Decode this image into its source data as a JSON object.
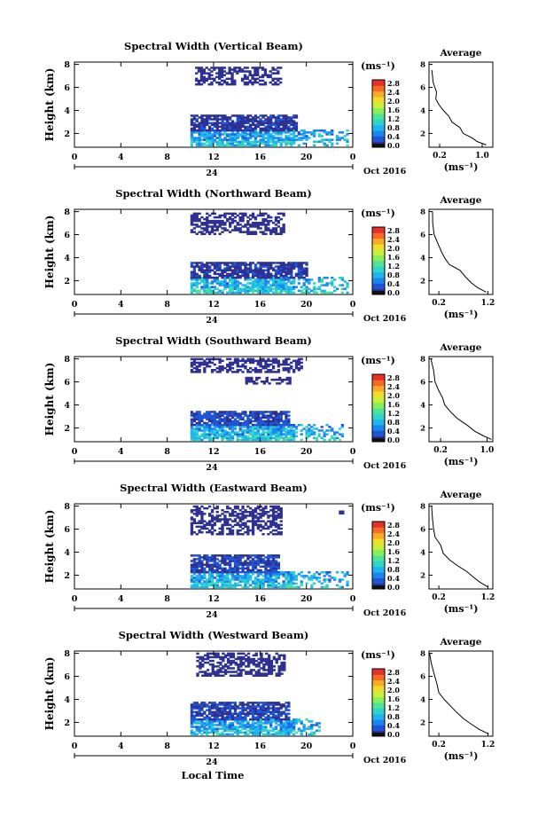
{
  "figure": {
    "xlabel": "Local Time",
    "date_label": "Oct 2016",
    "day_label": "24",
    "colorbar_unit": "(ms⁻¹)",
    "colorbar_ticks": [
      "0.0",
      "0.4",
      "0.8",
      "1.2",
      "1.6",
      "2.0",
      "2.4",
      "2.8"
    ],
    "colormap": [
      "#2e3192",
      "#1f56d6",
      "#1b86f0",
      "#1fb6f0",
      "#2fd6c8",
      "#4fe39a",
      "#8aed5c",
      "#c8f03a",
      "#f0dc2a",
      "#f8aa28",
      "#f56a25",
      "#e8302a"
    ],
    "avg_title": "Average",
    "avg_xlabel": "(ms⁻¹)"
  },
  "chart_data": [
    {
      "type": "heatmap",
      "title": "Spectral Width (Vertical Beam)",
      "ylabel": "Height (km)",
      "xticks": [
        "0",
        "4",
        "8",
        "12",
        "16",
        "20",
        "0"
      ],
      "yticks": [
        "2",
        "4",
        "6",
        "8"
      ],
      "xlim": [
        0,
        24
      ],
      "ylim": [
        0.8,
        8.2
      ],
      "clim": [
        0,
        3.0
      ],
      "regions": [
        {
          "t0": 10,
          "t1": 23.5,
          "h0": 0.9,
          "h1": 2.3,
          "v": 0.75
        },
        {
          "t0": 10,
          "t1": 19.2,
          "h0": 2.2,
          "h1": 3.6,
          "v": 0.2
        },
        {
          "t0": 10.4,
          "t1": 17.8,
          "h0": 6.2,
          "h1": 7.8,
          "v": 0.05
        }
      ],
      "avg_xticks": [
        "0.2",
        "1.0"
      ],
      "avg_xlim": [
        0,
        1.2
      ],
      "avg_yticks": [
        "2",
        "4",
        "6",
        "8"
      ],
      "avg_profile": [
        [
          1.05,
          1.0
        ],
        [
          0.92,
          1.3
        ],
        [
          0.8,
          1.6
        ],
        [
          0.65,
          2.0
        ],
        [
          0.55,
          2.5
        ],
        [
          0.45,
          3.0
        ],
        [
          0.35,
          3.5
        ],
        [
          0.28,
          4.0
        ],
        [
          0.2,
          4.5
        ],
        [
          0.15,
          5.0
        ],
        [
          0.11,
          5.6
        ],
        [
          0.08,
          6.4
        ],
        [
          0.06,
          7.5
        ]
      ]
    },
    {
      "type": "heatmap",
      "title": "Spectral Width (Northward Beam)",
      "ylabel": "Height (km)",
      "xticks": [
        "0",
        "4",
        "8",
        "12",
        "16",
        "20",
        "0"
      ],
      "yticks": [
        "2",
        "4",
        "6",
        "8"
      ],
      "xlim": [
        0,
        24
      ],
      "ylim": [
        0.8,
        8.2
      ],
      "clim": [
        0,
        3.0
      ],
      "regions": [
        {
          "t0": 10,
          "t1": 23.5,
          "h0": 0.9,
          "h1": 2.3,
          "v": 0.8
        },
        {
          "t0": 10,
          "t1": 20.0,
          "h0": 2.2,
          "h1": 3.6,
          "v": 0.2
        },
        {
          "t0": 10.0,
          "t1": 18.0,
          "h0": 6.0,
          "h1": 7.8,
          "v": 0.05
        }
      ],
      "avg_xticks": [
        "0.2",
        "1.2"
      ],
      "avg_xlim": [
        0,
        1.3
      ],
      "avg_yticks": [
        "2",
        "4",
        "6",
        "8"
      ],
      "avg_profile": [
        [
          1.2,
          1.0
        ],
        [
          1.0,
          1.4
        ],
        [
          0.85,
          1.8
        ],
        [
          0.75,
          2.3
        ],
        [
          0.6,
          2.9
        ],
        [
          0.45,
          3.4
        ],
        [
          0.35,
          3.9
        ],
        [
          0.25,
          4.5
        ],
        [
          0.18,
          5.2
        ],
        [
          0.1,
          6.0
        ],
        [
          0.07,
          7.0
        ],
        [
          0.05,
          8.0
        ]
      ]
    },
    {
      "type": "heatmap",
      "title": "Spectral Width (Southward Beam)",
      "ylabel": "Height (km)",
      "xticks": [
        "0",
        "4",
        "8",
        "12",
        "16",
        "20",
        "0"
      ],
      "yticks": [
        "2",
        "4",
        "6",
        "8"
      ],
      "xlim": [
        0,
        24
      ],
      "ylim": [
        0.8,
        8.2
      ],
      "clim": [
        0,
        3.0
      ],
      "regions": [
        {
          "t0": 10,
          "t1": 23.0,
          "h0": 0.9,
          "h1": 2.3,
          "v": 0.8
        },
        {
          "t0": 10,
          "t1": 18.5,
          "h0": 2.2,
          "h1": 3.4,
          "v": 0.3
        },
        {
          "t0": 14.5,
          "t1": 18.5,
          "h0": 5.8,
          "h1": 6.3,
          "v": 0.05
        },
        {
          "t0": 10.0,
          "t1": 19.5,
          "h0": 6.8,
          "h1": 8.0,
          "v": 0.05
        }
      ],
      "avg_xticks": [
        "0.2",
        "1.0"
      ],
      "avg_xlim": [
        0,
        1.1
      ],
      "avg_yticks": [
        "2",
        "4",
        "6",
        "8"
      ],
      "avg_profile": [
        [
          1.05,
          1.0
        ],
        [
          0.95,
          1.3
        ],
        [
          0.8,
          1.7
        ],
        [
          0.65,
          2.2
        ],
        [
          0.5,
          2.8
        ],
        [
          0.38,
          3.4
        ],
        [
          0.3,
          4.0
        ],
        [
          0.22,
          4.6
        ],
        [
          0.15,
          5.3
        ],
        [
          0.1,
          6.0
        ],
        [
          0.07,
          7.0
        ],
        [
          0.05,
          8.0
        ]
      ]
    },
    {
      "type": "heatmap",
      "title": "Spectral Width (Eastward Beam)",
      "ylabel": "Height (km)",
      "xticks": [
        "0",
        "4",
        "8",
        "12",
        "16",
        "20",
        "0"
      ],
      "yticks": [
        "2",
        "4",
        "6",
        "8"
      ],
      "xlim": [
        0,
        24
      ],
      "ylim": [
        0.8,
        8.2
      ],
      "clim": [
        0,
        3.0
      ],
      "regions": [
        {
          "t0": 10,
          "t1": 23.5,
          "h0": 0.9,
          "h1": 2.3,
          "v": 0.8
        },
        {
          "t0": 10,
          "t1": 17.5,
          "h0": 2.2,
          "h1": 3.8,
          "v": 0.25
        },
        {
          "t0": 10.0,
          "t1": 17.8,
          "h0": 5.5,
          "h1": 8.0,
          "v": 0.05
        },
        {
          "t0": 22.8,
          "t1": 23.2,
          "h0": 7.3,
          "h1": 7.6,
          "v": 0.1
        }
      ],
      "avg_xticks": [
        "0.2",
        "1.2"
      ],
      "avg_xlim": [
        0,
        1.3
      ],
      "avg_yticks": [
        "2",
        "4",
        "6",
        "8"
      ],
      "avg_profile": [
        [
          1.2,
          1.0
        ],
        [
          1.05,
          1.4
        ],
        [
          0.9,
          1.8
        ],
        [
          0.75,
          2.3
        ],
        [
          0.6,
          2.8
        ],
        [
          0.45,
          3.3
        ],
        [
          0.32,
          3.9
        ],
        [
          0.22,
          4.6
        ],
        [
          0.15,
          5.3
        ],
        [
          0.1,
          6.0
        ],
        [
          0.07,
          7.0
        ],
        [
          0.05,
          8.0
        ]
      ]
    },
    {
      "type": "heatmap",
      "title": "Spectral Width (Westward Beam)",
      "ylabel": "Height (km)",
      "xticks": [
        "0",
        "4",
        "8",
        "12",
        "16",
        "20",
        "0"
      ],
      "yticks": [
        "2",
        "4",
        "6",
        "8"
      ],
      "xlim": [
        0,
        24
      ],
      "ylim": [
        0.8,
        8.2
      ],
      "clim": [
        0,
        3.0
      ],
      "regions": [
        {
          "t0": 10,
          "t1": 21.0,
          "h0": 0.9,
          "h1": 2.3,
          "v": 0.75
        },
        {
          "t0": 10,
          "t1": 18.5,
          "h0": 2.2,
          "h1": 3.8,
          "v": 0.25
        },
        {
          "t0": 10.5,
          "t1": 18.0,
          "h0": 6.0,
          "h1": 8.0,
          "v": 0.05
        }
      ],
      "avg_xticks": [
        "0.2",
        "1.2"
      ],
      "avg_xlim": [
        0,
        1.3
      ],
      "avg_yticks": [
        "2",
        "4",
        "6",
        "8"
      ],
      "avg_profile": [
        [
          1.2,
          1.0
        ],
        [
          1.0,
          1.4
        ],
        [
          0.88,
          1.8
        ],
        [
          0.7,
          2.3
        ],
        [
          0.55,
          2.9
        ],
        [
          0.42,
          3.4
        ],
        [
          0.3,
          4.0
        ],
        [
          0.22,
          4.6
        ],
        [
          0.15,
          5.3
        ],
        [
          0.1,
          6.2
        ],
        [
          0.06,
          7.2
        ],
        [
          0.04,
          8.0
        ]
      ]
    }
  ]
}
